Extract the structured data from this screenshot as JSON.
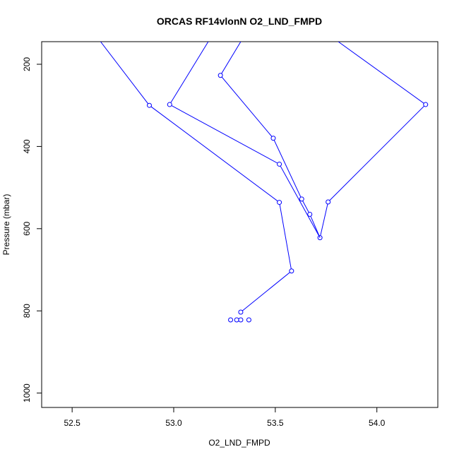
{
  "chart_data": {
    "type": "line",
    "title": "ORCAS RF14vlonN O2_LND_FMPD",
    "xlabel": "O2_LND_FMPD",
    "ylabel": "Pressure (mbar)",
    "xlim": [
      52.35,
      54.3
    ],
    "ylim": [
      1035,
      145
    ],
    "y_reversed": true,
    "xticks": [
      52.5,
      53.0,
      53.5,
      54.0
    ],
    "xtick_labels": [
      "52.5",
      "53.0",
      "53.5",
      "54.0"
    ],
    "yticks": [
      200,
      400,
      600,
      800,
      1000
    ],
    "ytick_labels": [
      "200",
      "400",
      "600",
      "800",
      "1000"
    ],
    "grid": false,
    "legend": "none",
    "series_color": "#0000ff",
    "x": [
      52.64,
      52.88,
      53.52,
      53.58,
      53.33,
      53.28,
      53.31,
      53.33,
      53.37,
      53.17,
      52.98,
      53.52,
      53.72,
      53.76,
      54.24,
      53.81,
      53.33,
      53.23,
      53.49,
      53.63,
      53.67,
      53.72
    ],
    "y": [
      145,
      300,
      536,
      703,
      803,
      822,
      822,
      822,
      822,
      145,
      298,
      443,
      622,
      535,
      298,
      145,
      145,
      227,
      380,
      528,
      565,
      622
    ],
    "segments": [
      {
        "points": [
          [
            52.64,
            145
          ],
          [
            52.88,
            300
          ],
          [
            53.52,
            536
          ],
          [
            53.58,
            703
          ],
          [
            53.33,
            803
          ]
        ],
        "markers": [
          false,
          true,
          true,
          true,
          true
        ]
      },
      {
        "points": [
          [
            53.28,
            822
          ]
        ],
        "markers": [
          true
        ]
      },
      {
        "points": [
          [
            53.31,
            822
          ]
        ],
        "markers": [
          true
        ]
      },
      {
        "points": [
          [
            53.33,
            822
          ]
        ],
        "markers": [
          true
        ]
      },
      {
        "points": [
          [
            53.37,
            822
          ]
        ],
        "markers": [
          true
        ]
      },
      {
        "points": [
          [
            53.17,
            145
          ],
          [
            52.98,
            298
          ],
          [
            53.52,
            443
          ],
          [
            53.72,
            622
          ],
          [
            53.76,
            535
          ],
          [
            54.24,
            298
          ],
          [
            53.81,
            145
          ]
        ],
        "markers": [
          false,
          true,
          true,
          true,
          true,
          true,
          false
        ]
      },
      {
        "points": [
          [
            53.33,
            145
          ],
          [
            53.23,
            227
          ],
          [
            53.49,
            380
          ],
          [
            53.63,
            528
          ],
          [
            53.67,
            565
          ],
          [
            53.72,
            622
          ]
        ],
        "markers": [
          false,
          true,
          true,
          true,
          true,
          false
        ]
      }
    ]
  }
}
